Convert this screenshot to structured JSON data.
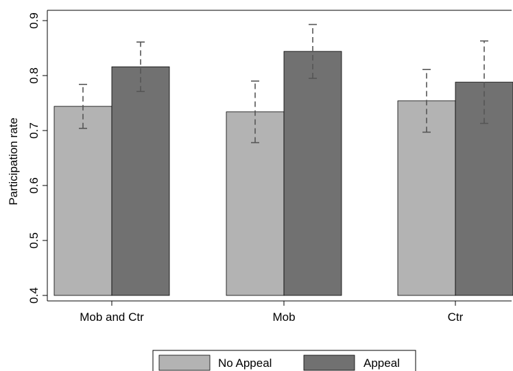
{
  "chart_data": {
    "type": "bar",
    "categories": [
      "Mob and Ctr",
      "Mob",
      "Ctr"
    ],
    "series": [
      {
        "name": "No Appeal",
        "color": "#b3b3b3",
        "values": [
          0.744,
          0.734,
          0.754
        ],
        "ci_low": [
          0.704,
          0.678,
          0.697
        ],
        "ci_high": [
          0.784,
          0.79,
          0.811
        ]
      },
      {
        "name": "Appeal",
        "color": "#717171",
        "values": [
          0.816,
          0.844,
          0.788
        ],
        "ci_low": [
          0.771,
          0.795,
          0.713
        ],
        "ci_high": [
          0.861,
          0.893,
          0.863
        ]
      }
    ],
    "ylabel": "Participation rate",
    "xlabel": "",
    "ylim": [
      0.4,
      0.9
    ],
    "yticks": [
      "0.4",
      "0.5",
      "0.6",
      "0.7",
      "0.8",
      "0.9"
    ],
    "legend_position": "bottom",
    "grid": false,
    "error_bar_style": "dashed"
  }
}
